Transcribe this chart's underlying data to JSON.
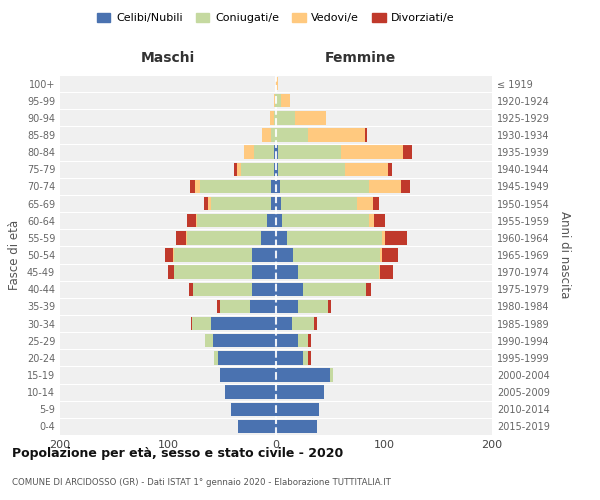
{
  "age_groups": [
    "0-4",
    "5-9",
    "10-14",
    "15-19",
    "20-24",
    "25-29",
    "30-34",
    "35-39",
    "40-44",
    "45-49",
    "50-54",
    "55-59",
    "60-64",
    "65-69",
    "70-74",
    "75-79",
    "80-84",
    "85-89",
    "90-94",
    "95-99",
    "100+"
  ],
  "birth_years": [
    "2015-2019",
    "2010-2014",
    "2005-2009",
    "2000-2004",
    "1995-1999",
    "1990-1994",
    "1985-1989",
    "1980-1984",
    "1975-1979",
    "1970-1974",
    "1965-1969",
    "1960-1964",
    "1955-1959",
    "1950-1954",
    "1945-1949",
    "1940-1944",
    "1935-1939",
    "1930-1934",
    "1925-1929",
    "1920-1924",
    "≤ 1919"
  ],
  "colors": {
    "celibe": "#4a72b0",
    "coniugato": "#c5d9a0",
    "vedovo": "#ffc97f",
    "divorziato": "#c0392b"
  },
  "maschi": {
    "celibe": [
      35,
      42,
      47,
      52,
      54,
      58,
      60,
      24,
      22,
      22,
      22,
      14,
      8,
      5,
      5,
      2,
      2,
      0,
      0,
      0,
      0
    ],
    "coniugato": [
      0,
      0,
      0,
      0,
      3,
      8,
      18,
      28,
      55,
      72,
      72,
      68,
      65,
      55,
      65,
      30,
      18,
      5,
      2,
      1,
      0
    ],
    "vedovo": [
      0,
      0,
      0,
      0,
      0,
      0,
      0,
      0,
      0,
      0,
      1,
      1,
      1,
      3,
      5,
      4,
      10,
      8,
      4,
      1,
      0
    ],
    "divorziato": [
      0,
      0,
      0,
      0,
      0,
      0,
      1,
      3,
      4,
      6,
      8,
      10,
      8,
      4,
      5,
      3,
      0,
      0,
      0,
      0,
      0
    ]
  },
  "femmine": {
    "nubile": [
      38,
      40,
      44,
      50,
      25,
      20,
      15,
      20,
      25,
      20,
      16,
      10,
      6,
      5,
      4,
      2,
      2,
      0,
      0,
      0,
      0
    ],
    "coniugata": [
      0,
      0,
      0,
      3,
      5,
      10,
      20,
      28,
      58,
      75,
      80,
      88,
      80,
      70,
      82,
      62,
      58,
      30,
      18,
      5,
      0
    ],
    "vedova": [
      0,
      0,
      0,
      0,
      0,
      0,
      0,
      0,
      0,
      1,
      2,
      3,
      5,
      15,
      30,
      40,
      58,
      52,
      28,
      8,
      2
    ],
    "divorziata": [
      0,
      0,
      0,
      0,
      2,
      2,
      3,
      3,
      5,
      12,
      15,
      20,
      10,
      5,
      8,
      3,
      8,
      2,
      0,
      0,
      0
    ]
  },
  "title": "Popolazione per età, sesso e stato civile - 2020",
  "subtitle": "COMUNE DI ARCIDOSSO (GR) - Dati ISTAT 1° gennaio 2020 - Elaborazione TUTTITALIA.IT",
  "xlabel_maschi": "Maschi",
  "xlabel_femmine": "Femmine",
  "ylabel": "Fasce di età",
  "ylabel_right": "Anni di nascita",
  "xlim": 200,
  "background": "#f0f0f0",
  "legend_labels": [
    "Celibi/Nubili",
    "Coniugati/e",
    "Vedovi/e",
    "Divorziati/e"
  ]
}
